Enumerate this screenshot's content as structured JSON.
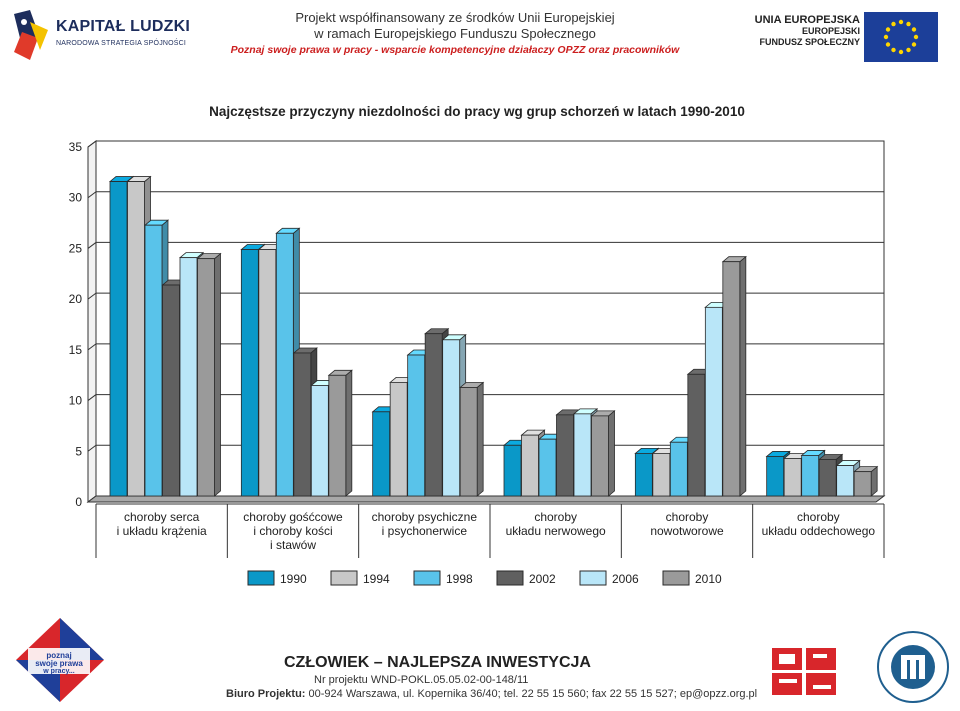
{
  "header": {
    "left_logo": {
      "title": "KAPITAŁ LUDZKI",
      "subtitle": "NARODOWA STRATEGIA SPÓJNOŚCI"
    },
    "project_line1": "Projekt współfinansowany ze środków Unii Europejskiej",
    "project_line2": "w ramach Europejskiego Funduszu Społecznego",
    "project_line3": "Poznaj swoje prawa w pracy - wsparcie kompetencyjne działaczy OPZZ  oraz pracowników",
    "eu_line1": "UNIA EUROPEJSKA",
    "eu_line2": "EUROPEJSKI",
    "eu_line3": "FUNDUSZ SPOŁECZNY"
  },
  "colors": {
    "1990": "#0a98c8",
    "1994": "#c8c8c8",
    "1998": "#59c3ea",
    "2002": "#606060",
    "2006": "#b9e6f8",
    "2010": "#9a9a9a",
    "floor": "#a8a8a8",
    "grid": "#333333"
  },
  "chart_data": {
    "type": "bar",
    "title": "Najczęstsze przyczyny niezdolności do pracy wg grup schorzeń w latach 1990-2010",
    "categories": [
      [
        "choroby serca",
        "i układu krążenia"
      ],
      [
        "choroby gośćcowe",
        "i choroby kości",
        "i stawów"
      ],
      [
        "choroby psychiczne",
        "i psychonerwice"
      ],
      [
        "choroby",
        "układu nerwowego"
      ],
      [
        "choroby",
        "nowotworowe"
      ],
      [
        "choroby",
        "układu oddechowego"
      ]
    ],
    "series": [
      {
        "name": "1990",
        "values": [
          31.0,
          24.3,
          8.3,
          5.0,
          4.2,
          3.9
        ]
      },
      {
        "name": "1994",
        "values": [
          31.0,
          24.3,
          11.2,
          6.0,
          4.2,
          3.7
        ]
      },
      {
        "name": "1998",
        "values": [
          26.7,
          25.9,
          13.9,
          5.6,
          5.3,
          4.0
        ]
      },
      {
        "name": "2002",
        "values": [
          20.8,
          14.1,
          16.0,
          8.0,
          12.0,
          3.6
        ]
      },
      {
        "name": "2006",
        "values": [
          23.5,
          10.9,
          15.4,
          8.1,
          18.6,
          3.0
        ]
      },
      {
        "name": "2010",
        "values": [
          23.4,
          11.9,
          10.7,
          7.9,
          23.1,
          2.4
        ]
      }
    ],
    "ylim": [
      0,
      35
    ],
    "yticks": [
      0,
      5,
      10,
      15,
      20,
      25,
      30,
      35
    ],
    "grid": true,
    "legend": "bottom"
  },
  "footer": {
    "logo_text": "poznaj swoje prawa w pracy...",
    "title": "CZŁOWIEK – NAJLEPSZA INWESTYCJA",
    "line2": "Nr projektu  WND-POKL.05.05.02-00-148/11",
    "line3_label": "Biuro Projektu:",
    "line3_text": " 00-924 Warszawa, ul. Kopernika 36/40; tel. 22 55 15 560; fax 22 55 15 527; ep@opzz.org.pl",
    "opzz_logo": "OPZZ",
    "pip_logo": "PAŃSTWOWA INSPEKCJA PRACY"
  }
}
